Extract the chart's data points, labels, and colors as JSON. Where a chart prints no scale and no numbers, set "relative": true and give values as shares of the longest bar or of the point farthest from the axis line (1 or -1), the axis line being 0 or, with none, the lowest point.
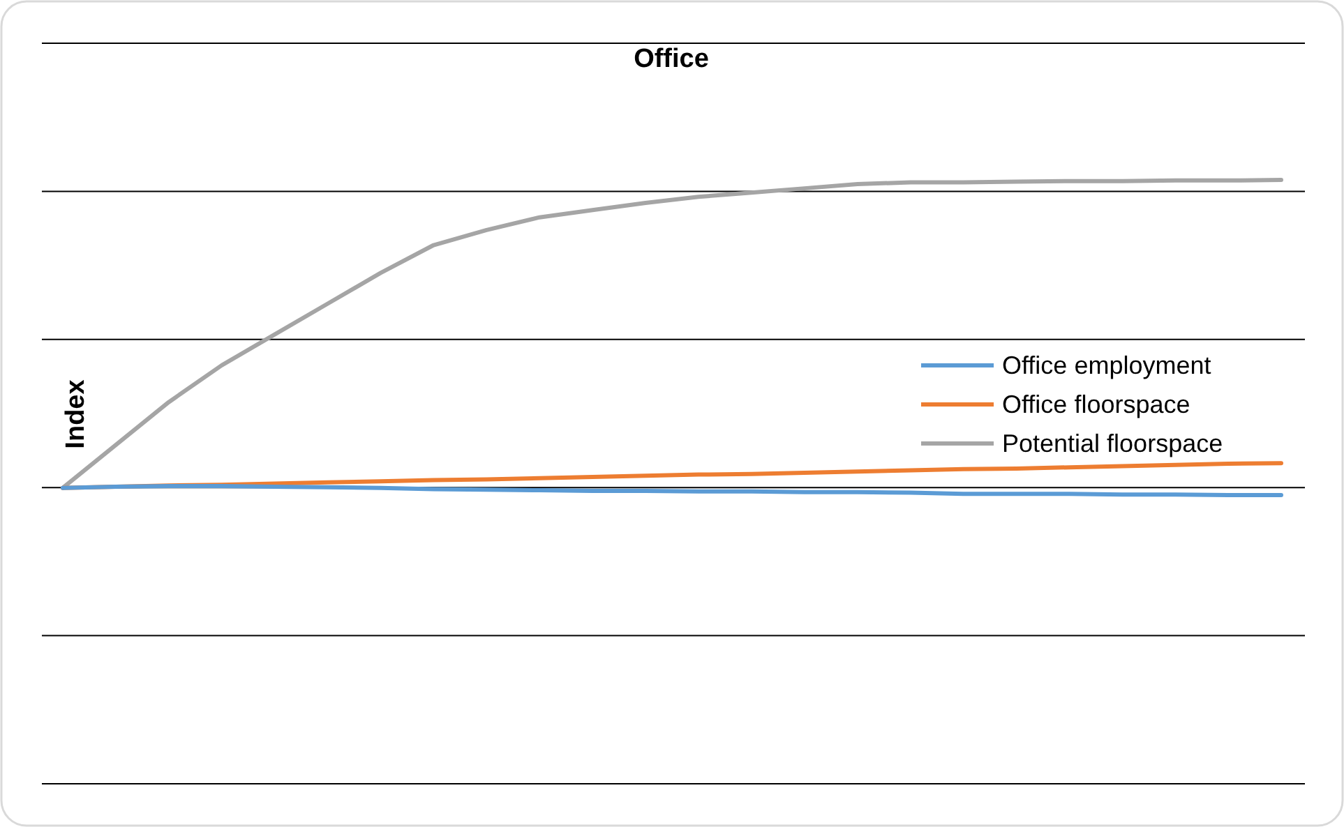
{
  "chart_data": {
    "type": "line",
    "title": "Office",
    "ylabel": "Index",
    "relative": true,
    "grid": "y",
    "legend": "right",
    "line_style": "solid",
    "marker": "none",
    "categories": [
      null,
      null,
      null,
      null,
      null,
      null,
      null,
      null,
      null,
      null,
      null,
      null,
      null,
      null,
      null,
      null,
      null,
      null,
      null,
      null,
      null,
      null,
      null,
      null
    ],
    "series": [
      {
        "name": "Office employment",
        "color": "#5b9bd5",
        "values": [
          0.49,
          0.492,
          0.493,
          0.493,
          0.492,
          0.491,
          0.49,
          0.488,
          0.487,
          0.486,
          0.485,
          0.485,
          0.484,
          0.484,
          0.483,
          0.483,
          0.482,
          0.48,
          0.48,
          0.48,
          0.479,
          0.479,
          0.478,
          0.478
        ]
      },
      {
        "name": "Office floorspace",
        "color": "#ed7d31",
        "values": [
          0.49,
          0.492,
          0.494,
          0.495,
          0.497,
          0.499,
          0.501,
          0.503,
          0.504,
          0.506,
          0.508,
          0.51,
          0.512,
          0.513,
          0.515,
          0.517,
          0.519,
          0.521,
          0.522,
          0.524,
          0.526,
          0.528,
          0.53,
          0.531
        ]
      },
      {
        "name": "Potential floorspace",
        "color": "#a5a5a5",
        "values": [
          0.49,
          0.561,
          0.632,
          0.693,
          0.744,
          0.795,
          0.846,
          0.892,
          0.917,
          0.938,
          0.95,
          0.962,
          0.972,
          0.979,
          0.986,
          0.993,
          0.996,
          0.996,
          0.997,
          0.998,
          0.998,
          0.999,
          0.999,
          1
        ]
      }
    ]
  }
}
